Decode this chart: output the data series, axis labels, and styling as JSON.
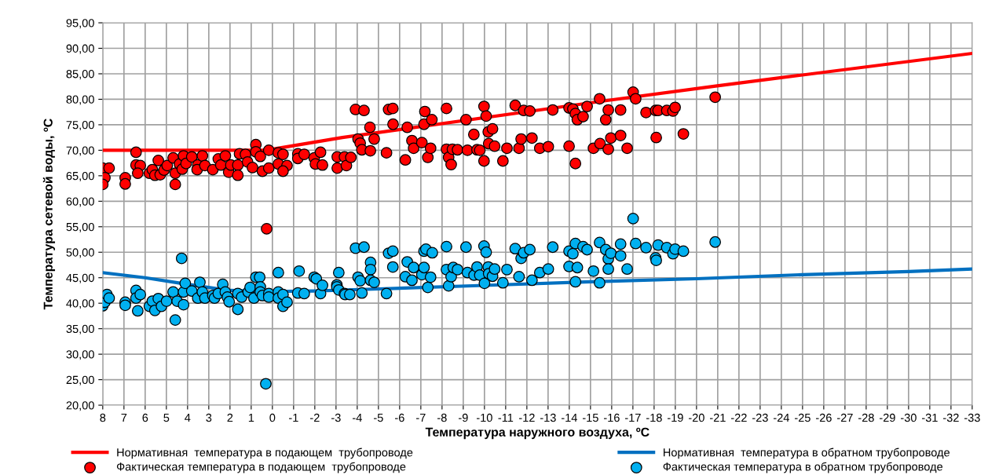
{
  "chart_data": {
    "type": "scatter",
    "xlabel": "Температура наружного воздуха, ºС",
    "ylabel": "Температура сетевой воды, ºС",
    "xlim": [
      8,
      -33
    ],
    "xticks": [
      8,
      7,
      6,
      5,
      4,
      3,
      2,
      1,
      0,
      -1,
      -2,
      -3,
      -4,
      -5,
      -6,
      -7,
      -8,
      -9,
      -10,
      -11,
      -12,
      -13,
      -14,
      -15,
      -16,
      -17,
      -18,
      -19,
      -20,
      -21,
      -22,
      -23,
      -24,
      -25,
      -26,
      -27,
      -28,
      -29,
      -30,
      -31,
      -32,
      -33
    ],
    "ylim": [
      20,
      95
    ],
    "yticks": [
      {
        "value": 20,
        "label": "20,00"
      },
      {
        "value": 25,
        "label": "25,00"
      },
      {
        "value": 30,
        "label": "30,00"
      },
      {
        "value": 35,
        "label": "35,00"
      },
      {
        "value": 40,
        "label": "40,00"
      },
      {
        "value": 45,
        "label": "45,00"
      },
      {
        "value": 50,
        "label": "50,00"
      },
      {
        "value": 55,
        "label": "55,00"
      },
      {
        "value": 60,
        "label": "60,00"
      },
      {
        "value": 65,
        "label": "65,00"
      },
      {
        "value": 70,
        "label": "70,00"
      },
      {
        "value": 75,
        "label": "75,00"
      },
      {
        "value": 80,
        "label": "80,00"
      },
      {
        "value": 85,
        "label": "85,00"
      },
      {
        "value": 90,
        "label": "90,00"
      },
      {
        "value": 95,
        "label": "95,00"
      }
    ],
    "grid": true,
    "legend": "bottom",
    "series": [
      {
        "name": "Нормативная  температура в подающем  трубопроводе",
        "type": "line",
        "marker": "none",
        "line_style": "solid",
        "color": "#ff0000",
        "x": [
          8,
          0.3,
          -3.3,
          -15.5,
          -20.9,
          -33
        ],
        "values": [
          70,
          70,
          72.5,
          79.6,
          82.6,
          89
        ]
      },
      {
        "name": "Фактическая температура в подающем  трубопроводе",
        "marker": "circle",
        "color": "#ff0000",
        "x": [
          8.0,
          7.7,
          7.9,
          8,
          6.94,
          6.94,
          6.43,
          6.43,
          6.23,
          6.35,
          5.8,
          5.66,
          5.54,
          5.38,
          5.29,
          5.11,
          4.96,
          4.68,
          4.58,
          4.58,
          4.38,
          4.19,
          4.25,
          4.07,
          3.8,
          3.52,
          3.55,
          3.3,
          3.18,
          2.81,
          2.55,
          2.43,
          2.22,
          2.06,
          1.96,
          1.63,
          1.63,
          1.55,
          1.27,
          1.17,
          0.94,
          0.78,
          0.78,
          0.57,
          0.47,
          0.17,
          0.17,
          0.27,
          -0.28,
          -0.28,
          -0.5,
          -0.69,
          -0.5,
          -1.2,
          -1.2,
          -1.5,
          -1.97,
          -2.27,
          -2.03,
          -2.36,
          -3.06,
          -3.06,
          -3.4,
          -3.49,
          -3.7,
          -3.92,
          -4.32,
          -4.04,
          -4.14,
          -4.22,
          -4.6,
          -4.62,
          -4.8,
          -5.38,
          -5.48,
          -5.68,
          -5.69,
          -6.27,
          -6.36,
          -6.58,
          -6.66,
          -7.05,
          -7.15,
          -7.19,
          -7.33,
          -7.46,
          -7.52,
          -8.21,
          -8.21,
          -8.31,
          -8.43,
          -8.49,
          -8.73,
          -9.13,
          -9.2,
          -9.5,
          -9.65,
          -9.78,
          -9.98,
          -9.98,
          -10.08,
          -10.18,
          -10.2,
          -10.38,
          -10.48,
          -10.87,
          -11.06,
          -11.45,
          -11.63,
          -11.73,
          -11.85,
          -12.14,
          -12.24,
          -12.61,
          -13.01,
          -13.22,
          -13.99,
          -13.99,
          -14.17,
          -14.29,
          -14.29,
          -14.38,
          -14.65,
          -14.84,
          -15.14,
          -15.43,
          -15.45,
          -15.72,
          -15.84,
          -15.84,
          -15.96,
          -16.42,
          -16.42,
          -16.73,
          -17.01,
          -17.13,
          -17.62,
          -18.07,
          -18.1,
          -18.19,
          -18.6,
          -18.89,
          -18.99,
          -19.38,
          -20.88
        ],
        "values": [
          66.5,
          66.5,
          64.6,
          63.3,
          64.6,
          63.4,
          69.6,
          67.1,
          67.0,
          65.5,
          65.5,
          66.2,
          65.1,
          68.0,
          65.2,
          66.1,
          67.0,
          68.5,
          65.5,
          63.3,
          67.3,
          68.9,
          66.3,
          67.4,
          68.7,
          67.1,
          66.2,
          68.9,
          67.0,
          66.2,
          68.3,
          67.1,
          68.9,
          65.7,
          67.1,
          67.1,
          65.1,
          69.3,
          69.2,
          67.7,
          66.6,
          71.1,
          69.7,
          68.8,
          65.9,
          70.0,
          66.5,
          54.6,
          69.5,
          67.3,
          69.2,
          67.0,
          65.9,
          69.3,
          68.4,
          69.2,
          68.5,
          69.6,
          67.3,
          67.1,
          68.7,
          66.5,
          68.7,
          67.0,
          68.6,
          78.0,
          77.8,
          72.2,
          71.4,
          70.1,
          74.5,
          69.9,
          72.2,
          69.5,
          78.0,
          78.2,
          75.1,
          68.1,
          74.5,
          71.9,
          70.4,
          71.5,
          75.1,
          77.6,
          68.6,
          70.4,
          76.0,
          78.2,
          70.2,
          68.6,
          67.2,
          70.2,
          70.1,
          76.0,
          70.0,
          73.1,
          70.1,
          70.0,
          78.6,
          67.9,
          76.7,
          73.6,
          71.3,
          74.2,
          70.8,
          67.9,
          70.4,
          78.8,
          70.4,
          72.2,
          77.8,
          77.7,
          72.4,
          70.4,
          70.7,
          77.9,
          78.3,
          70.8,
          78.1,
          77.2,
          67.4,
          76.0,
          76.6,
          78.6,
          70.4,
          80.1,
          71.3,
          76.0,
          77.9,
          70.2,
          72.4,
          77.9,
          72.9,
          70.4,
          81.4,
          80.1,
          77.4,
          77.8,
          72.5,
          77.8,
          77.8,
          77.7,
          78.4,
          73.2,
          80.4
        ]
      },
      {
        "name": "Нормативная  температура в обратном трубопроводе",
        "type": "line",
        "marker": "none",
        "line_style": "solid",
        "color": "#0070c0",
        "x": [
          8,
          6,
          4.3,
          2,
          0,
          -2,
          -5,
          -10,
          -15,
          -20,
          -25,
          -30,
          -33
        ],
        "values": [
          46,
          45,
          43.9,
          42.5,
          42.3,
          42.4,
          42.8,
          43.5,
          44.2,
          44.8,
          45.6,
          46.2,
          46.7
        ]
      },
      {
        "name": "Фактическая температура в обратном трубопроводе",
        "marker": "circle",
        "color": "#00b0f0",
        "x": [
          8,
          7.9,
          7.8,
          7.7,
          6.94,
          6.94,
          6.43,
          6.43,
          6.23,
          6.35,
          5.8,
          5.66,
          5.54,
          5.38,
          5.23,
          4.99,
          4.68,
          4.58,
          4.49,
          4.28,
          4.19,
          4.19,
          4.11,
          3.8,
          3.52,
          3.42,
          3.3,
          3.18,
          2.81,
          2.73,
          2.55,
          2.34,
          2.22,
          2.12,
          2.04,
          1.63,
          1.63,
          1.45,
          1.14,
          1.05,
          0.87,
          0.78,
          0.6,
          0.57,
          0.57,
          0.47,
          0.17,
          0.17,
          0.31,
          -0.28,
          -0.28,
          -0.28,
          -0.5,
          -0.5,
          -0.69,
          -1.2,
          -1.26,
          -1.5,
          -1.97,
          -2.07,
          -2.27,
          -2.36,
          -3.04,
          -3.04,
          -3.13,
          -3.13,
          -3.4,
          -3.43,
          -3.65,
          -3.92,
          -4.32,
          -4.04,
          -4.14,
          -4.22,
          -4.63,
          -4.63,
          -4.63,
          -4.8,
          -5.38,
          -5.48,
          -5.68,
          -5.68,
          -6.27,
          -6.36,
          -6.58,
          -6.66,
          -7.05,
          -7.15,
          -7.15,
          -7.24,
          -7.33,
          -7.46,
          -7.54,
          -8.21,
          -8.21,
          -8.31,
          -8.43,
          -8.53,
          -8.73,
          -9.13,
          -9.2,
          -9.51,
          -9.65,
          -9.78,
          -9.98,
          -10.08,
          -10.18,
          -10.0,
          -10.2,
          -10.38,
          -10.48,
          -10.87,
          -11.06,
          -11.45,
          -11.63,
          -11.73,
          -11.85,
          -12.14,
          -12.24,
          -12.61,
          -13.01,
          -13.22,
          -13.99,
          -13.99,
          -14.17,
          -14.29,
          -14.29,
          -14.38,
          -14.65,
          -14.84,
          -15.14,
          -15.43,
          -15.43,
          -15.72,
          -15.84,
          -15.84,
          -15.96,
          -16.42,
          -16.42,
          -16.73,
          -17.01,
          -17.13,
          -17.62,
          -18.07,
          -18.1,
          -18.19,
          -18.6,
          -18.89,
          -18.99,
          -19.38,
          -20.88
        ],
        "values": [
          39.5,
          40.2,
          41.7,
          41.0,
          40.2,
          39.6,
          42.5,
          41.0,
          41.7,
          38.5,
          39.4,
          40.4,
          38.6,
          40.9,
          39.4,
          40.4,
          42.2,
          36.7,
          40.4,
          48.8,
          39.7,
          42.2,
          43.9,
          42.4,
          41.0,
          44.1,
          42.2,
          41.0,
          41.5,
          41.0,
          41.9,
          43.7,
          42.2,
          41.2,
          40.3,
          41.9,
          38.8,
          41.2,
          42.2,
          43.1,
          41.0,
          45.1,
          45.1,
          43.2,
          42.2,
          41.5,
          41.9,
          41.2,
          24.2,
          46.0,
          42.2,
          41.0,
          41.7,
          39.4,
          40.2,
          42.0,
          46.3,
          41.9,
          45.1,
          44.8,
          41.9,
          43.5,
          43.6,
          43.2,
          46.0,
          42.6,
          41.9,
          41.7,
          41.7,
          50.8,
          51.0,
          45.1,
          44.4,
          42.0,
          48.0,
          46.6,
          44.5,
          44.1,
          41.9,
          49.8,
          50.2,
          47.1,
          45.2,
          48.1,
          44.5,
          47.0,
          45.6,
          47.0,
          50.2,
          50.6,
          43.1,
          45.1,
          49.9,
          51.1,
          46.6,
          43.4,
          45.2,
          47.0,
          46.6,
          51.0,
          46.0,
          45.5,
          47.1,
          45.5,
          51.2,
          50.0,
          47.1,
          43.9,
          45.8,
          45.3,
          46.7,
          44.0,
          46.6,
          50.7,
          45.2,
          48.8,
          49.9,
          50.5,
          44.5,
          46.0,
          46.7,
          51.0,
          50.2,
          47.2,
          49.7,
          51.7,
          44.2,
          47.0,
          51.1,
          50.5,
          46.3,
          51.9,
          44.0,
          50.5,
          48.7,
          46.7,
          49.8,
          51.6,
          49.3,
          46.7,
          56.6,
          51.7,
          50.9,
          48.9,
          48.4,
          51.4,
          50.9,
          49.7,
          50.6,
          50.2,
          52.0
        ]
      }
    ]
  }
}
